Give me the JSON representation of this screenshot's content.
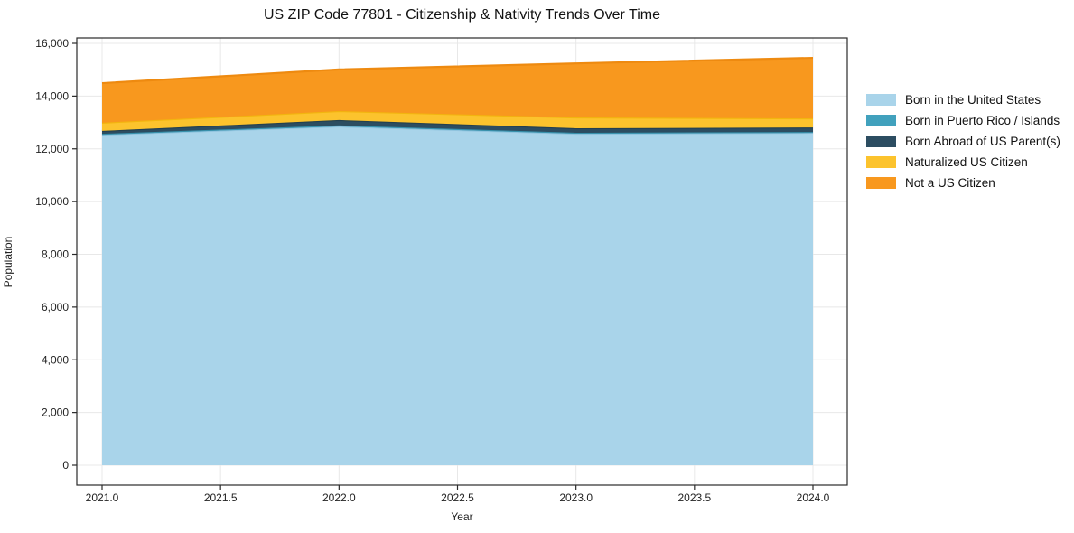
{
  "figure": {
    "background": "#ffffff",
    "grid_color": "#e8e8e8",
    "axis_color": "#2a2a2a",
    "tick_label_color": "#222222"
  },
  "chart_data": {
    "type": "area",
    "stacked": true,
    "title": "US ZIP Code 77801 - Citizenship & Nativity Trends Over Time",
    "xlabel": "Year",
    "ylabel": "Population",
    "grid": true,
    "legend_position": "right",
    "x": [
      2021,
      2022,
      2023,
      2024
    ],
    "series": [
      {
        "name": "Born in the United States",
        "values": [
          12540,
          12850,
          12575,
          12610
        ],
        "fill": "#a9d4ea",
        "line": "#8fc3de"
      },
      {
        "name": "Born in Puerto Rico / Islands",
        "values": [
          30,
          40,
          35,
          30
        ],
        "fill": "#41a1bd",
        "line": "#3790ab"
      },
      {
        "name": "Born Abroad of US Parent(s)",
        "values": [
          110,
          200,
          170,
          170
        ],
        "fill": "#2c4d61",
        "line": "#24404f"
      },
      {
        "name": "Naturalized US Citizen",
        "values": [
          310,
          340,
          410,
          345
        ],
        "fill": "#fcc32d",
        "line": "#f2b50f"
      },
      {
        "name": "Not a US Citizen",
        "values": [
          1500,
          1580,
          2050,
          2295
        ],
        "fill": "#f8981e",
        "line": "#ee8a10"
      }
    ],
    "totals": [
      14490,
      15010,
      15240,
      15450
    ],
    "xlim": [
      2021,
      2024
    ],
    "ylim": [
      0,
      16000
    ],
    "x_ticks": {
      "values": [
        2021,
        2021.5,
        2022,
        2022.5,
        2023,
        2023.5,
        2024
      ],
      "labels": [
        "2021.0",
        "2021.5",
        "2022.0",
        "2022.5",
        "2023.0",
        "2023.5",
        "2024.0"
      ]
    },
    "y_ticks": {
      "values": [
        0,
        2000,
        4000,
        6000,
        8000,
        10000,
        12000,
        14000,
        16000
      ],
      "labels": [
        "0",
        "2,000",
        "4,000",
        "6,000",
        "8,000",
        "10,000",
        "12,000",
        "14,000",
        "16,000"
      ]
    }
  }
}
